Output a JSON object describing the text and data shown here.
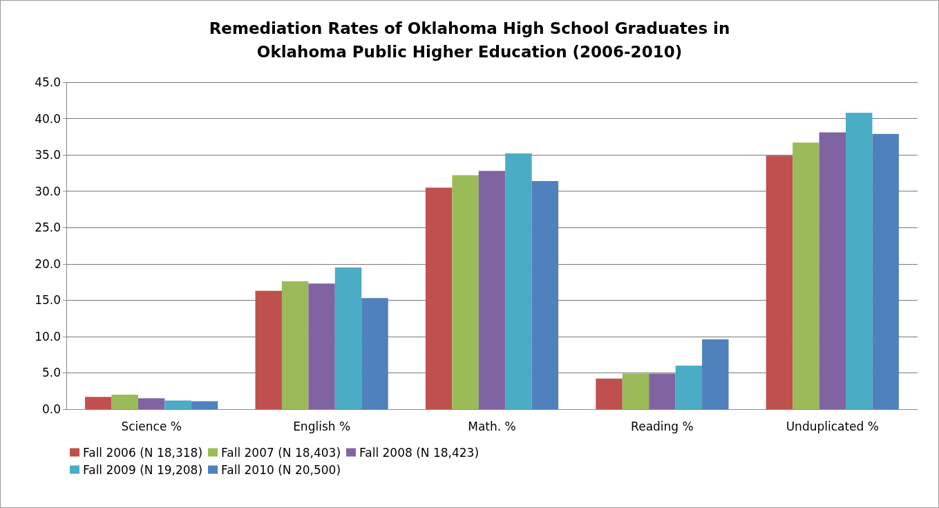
{
  "chart_data": {
    "type": "bar",
    "title": "Remediation Rates of Oklahoma High School Graduates in\nOklahoma Public Higher Education (2006-2010)",
    "categories": [
      "Science %",
      "English %",
      "Math. %",
      "Reading %",
      "Unduplicated %"
    ],
    "series": [
      {
        "name": "Fall 2006 (N 18,318)",
        "color": "#c0504d",
        "values": [
          1.7,
          16.3,
          30.5,
          4.2,
          34.9
        ]
      },
      {
        "name": "Fall 2007 (N 18,403)",
        "color": "#9bbb59",
        "values": [
          2.0,
          17.6,
          32.2,
          4.9,
          36.7
        ]
      },
      {
        "name": "Fall 2008 (N 18,423)",
        "color": "#8064a2",
        "values": [
          1.5,
          17.3,
          32.8,
          4.9,
          38.1
        ]
      },
      {
        "name": "Fall 2009 (N 19,208)",
        "color": "#4bacc6",
        "values": [
          1.2,
          19.5,
          35.2,
          6.0,
          40.8
        ]
      },
      {
        "name": "Fall 2010 (N 20,500)",
        "color": "#4f81bd",
        "values": [
          1.1,
          15.3,
          31.4,
          9.6,
          37.9
        ]
      }
    ],
    "ylim": [
      0,
      45
    ],
    "yticks": [
      {
        "value": 0,
        "label": "0.0"
      },
      {
        "value": 5,
        "label": "5.0"
      },
      {
        "value": 10,
        "label": "10.0"
      },
      {
        "value": 15,
        "label": "15.0"
      },
      {
        "value": 20,
        "label": "20.0"
      },
      {
        "value": 25,
        "label": "25.0"
      },
      {
        "value": 30,
        "label": "30.0"
      },
      {
        "value": 35,
        "label": "35.0"
      },
      {
        "value": 40,
        "label": "40.0"
      },
      {
        "value": 45,
        "label": "45.0"
      }
    ],
    "grid": "y",
    "legend": "bottom left"
  }
}
